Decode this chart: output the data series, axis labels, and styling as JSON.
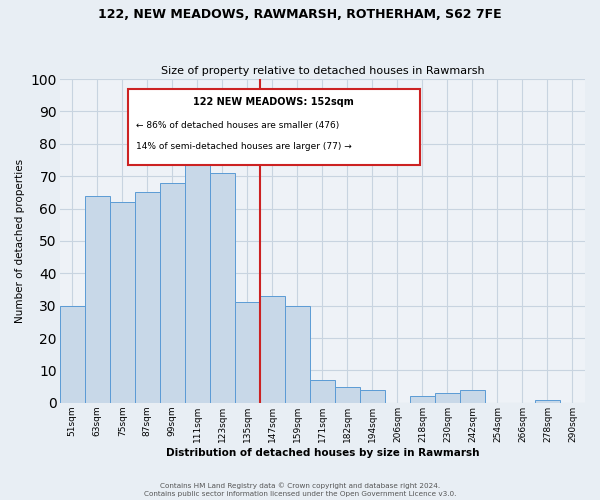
{
  "title": "122, NEW MEADOWS, RAWMARSH, ROTHERHAM, S62 7FE",
  "subtitle": "Size of property relative to detached houses in Rawmarsh",
  "xlabel": "Distribution of detached houses by size in Rawmarsh",
  "ylabel": "Number of detached properties",
  "bar_labels": [
    "51sqm",
    "63sqm",
    "75sqm",
    "87sqm",
    "99sqm",
    "111sqm",
    "123sqm",
    "135sqm",
    "147sqm",
    "159sqm",
    "171sqm",
    "182sqm",
    "194sqm",
    "206sqm",
    "218sqm",
    "230sqm",
    "242sqm",
    "254sqm",
    "266sqm",
    "278sqm",
    "290sqm"
  ],
  "bar_values": [
    30,
    64,
    62,
    65,
    68,
    82,
    71,
    31,
    33,
    30,
    7,
    5,
    4,
    0,
    2,
    3,
    4,
    0,
    0,
    1,
    0
  ],
  "bar_color": "#c8d8e8",
  "bar_edge_color": "#5b9bd5",
  "highlight_index": 8,
  "highlight_color": "#cc2222",
  "ylim": [
    0,
    100
  ],
  "annotation_title": "122 NEW MEADOWS: 152sqm",
  "annotation_line1": "← 86% of detached houses are smaller (476)",
  "annotation_line2": "14% of semi-detached houses are larger (77) →",
  "footer_line1": "Contains HM Land Registry data © Crown copyright and database right 2024.",
  "footer_line2": "Contains public sector information licensed under the Open Government Licence v3.0.",
  "background_color": "#e8eef4",
  "plot_background_color": "#eef2f7",
  "grid_color": "#c8d4e0"
}
